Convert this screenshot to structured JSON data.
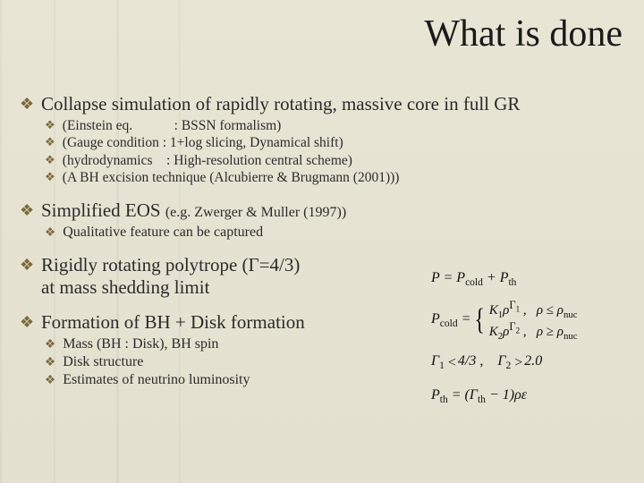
{
  "title": "What is done",
  "l1a": "Collapse simulation of rapidly rotating, massive core in full GR",
  "l1a_sub": [
    "(Einstein eq.      : BSSN formalism)",
    "(Gauge condition : 1+log slicing,  Dynamical shift)",
    "(hydrodynamics  : High-resolution central scheme)",
    "(A BH excision technique (Alcubierre & Brugmann (2001)))"
  ],
  "l1b_pre": "Simplified EOS ",
  "l1b_small": "(e.g. Zwerger & Muller (1997))",
  "l1b_sub": [
    "Qualitative feature can be captured"
  ],
  "l1c_line1": "Rigidly rotating polytrope (Γ=4/3)",
  "l1c_line2": "at mass shedding limit",
  "l1d": "Formation of BH + Disk formation",
  "l1d_sub": [
    "Mass (BH : Disk),   BH spin",
    "Disk structure",
    "Estimates of neutrino luminosity"
  ],
  "eq": {
    "p_sum": "P = P_cold + P_th",
    "pcold_prefix": "P_cold =",
    "pcold_case1": "K₁ρ^Γ₁ ,   ρ ≤ ρ_nuc",
    "pcold_case2": "K₂ρ^Γ₂ ,   ρ ≥ ρ_nuc",
    "gamma_rel": "Γ₁ ≲ 4/3 ,    Γ₂ ≳ 2.0",
    "pth_prefix": "P_th = (Γ_th − 1)ρε"
  },
  "colors": {
    "bullet": "#7a6a3a",
    "text": "#2a2a2a",
    "title": "#1a1a1a",
    "bg": "#e4e0cf"
  }
}
